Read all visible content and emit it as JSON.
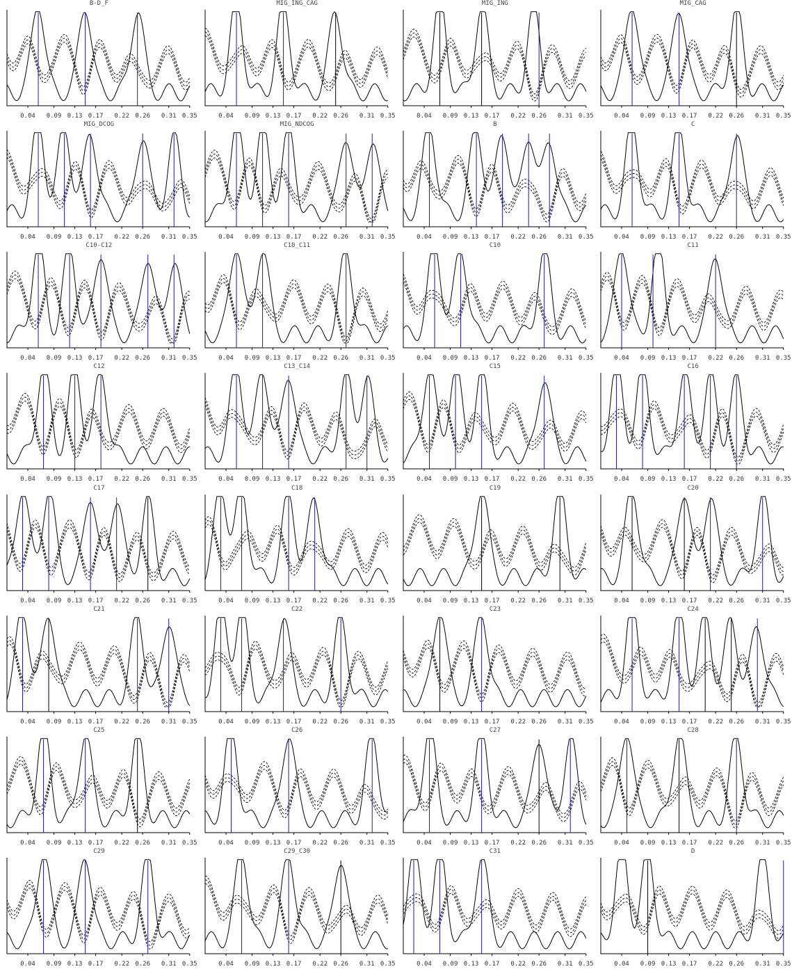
{
  "chart_data": {
    "type": "line",
    "layout_grid": [
      8,
      4
    ],
    "x_ticks": [
      "0.04",
      "0.09",
      "0.13",
      "0.17",
      "0.22",
      "0.26",
      "0.31",
      "0.35"
    ],
    "xlim": [
      0.0,
      0.35
    ],
    "ylim": [
      0,
      1
    ],
    "legend": "none",
    "grid": false,
    "colors": {
      "solid": "#000000",
      "dashed": "#000000",
      "vline_blue": "#1a1aa6",
      "vline_black": "#000000"
    },
    "panels": [
      {
        "title": "B-D_F",
        "peaks": [
          0.06,
          0.15,
          0.25
        ],
        "vlines": [
          {
            "x": 0.06,
            "c": "blue"
          },
          {
            "x": 0.15,
            "c": "blue"
          },
          {
            "x": 0.25,
            "c": "blue"
          }
        ]
      },
      {
        "title": "MIG_ING_CAG",
        "peaks": [
          0.06,
          0.15,
          0.25
        ],
        "vlines": [
          {
            "x": 0.06,
            "c": "blue"
          },
          {
            "x": 0.15,
            "c": "blue"
          },
          {
            "x": 0.25,
            "c": "black"
          }
        ]
      },
      {
        "title": "MIG_ING",
        "peaks": [
          0.07,
          0.15,
          0.25
        ],
        "vlines": [
          {
            "x": 0.07,
            "c": "black"
          },
          {
            "x": 0.15,
            "c": "black"
          },
          {
            "x": 0.26,
            "c": "blue"
          }
        ]
      },
      {
        "title": "MIG_CAG",
        "peaks": [
          0.06,
          0.15,
          0.26
        ],
        "vlines": [
          {
            "x": 0.06,
            "c": "blue"
          },
          {
            "x": 0.15,
            "c": "blue"
          },
          {
            "x": 0.26,
            "c": "black"
          }
        ]
      },
      {
        "title": "MIG_DCOG",
        "peaks": [
          0.06,
          0.11,
          0.16,
          0.26,
          0.32
        ],
        "vlines": [
          {
            "x": 0.06,
            "c": "blue"
          },
          {
            "x": 0.11,
            "c": "blue"
          },
          {
            "x": 0.16,
            "c": "blue"
          },
          {
            "x": 0.26,
            "c": "blue"
          },
          {
            "x": 0.32,
            "c": "blue"
          }
        ]
      },
      {
        "title": "MIG_NDCOG",
        "peaks": [
          0.06,
          0.11,
          0.16,
          0.27,
          0.32
        ],
        "vlines": [
          {
            "x": 0.06,
            "c": "blue"
          },
          {
            "x": 0.11,
            "c": "blue"
          },
          {
            "x": 0.16,
            "c": "blue"
          },
          {
            "x": 0.27,
            "c": "blue"
          },
          {
            "x": 0.32,
            "c": "blue"
          }
        ]
      },
      {
        "title": "B",
        "peaks": [
          0.05,
          0.14,
          0.19,
          0.24,
          0.28
        ],
        "vlines": [
          {
            "x": 0.05,
            "c": "blue"
          },
          {
            "x": 0.14,
            "c": "blue"
          },
          {
            "x": 0.19,
            "c": "blue"
          },
          {
            "x": 0.24,
            "c": "blue"
          },
          {
            "x": 0.28,
            "c": "blue"
          }
        ]
      },
      {
        "title": "C",
        "peaks": [
          0.06,
          0.15,
          0.26
        ],
        "vlines": [
          {
            "x": 0.06,
            "c": "blue"
          },
          {
            "x": 0.15,
            "c": "blue"
          },
          {
            "x": 0.26,
            "c": "blue"
          }
        ]
      },
      {
        "title": "C10-C12",
        "peaks": [
          0.06,
          0.12,
          0.18,
          0.27,
          0.32
        ],
        "vlines": [
          {
            "x": 0.06,
            "c": "blue"
          },
          {
            "x": 0.12,
            "c": "blue"
          },
          {
            "x": 0.18,
            "c": "blue"
          },
          {
            "x": 0.27,
            "c": "blue"
          },
          {
            "x": 0.32,
            "c": "blue"
          }
        ]
      },
      {
        "title": "C10_C11",
        "peaks": [
          0.06,
          0.11,
          0.27
        ],
        "vlines": [
          {
            "x": 0.06,
            "c": "blue"
          },
          {
            "x": 0.11,
            "c": "blue"
          },
          {
            "x": 0.27,
            "c": "blue"
          }
        ]
      },
      {
        "title": "C10",
        "peaks": [
          0.06,
          0.11,
          0.27
        ],
        "vlines": [
          {
            "x": 0.06,
            "c": "blue"
          },
          {
            "x": 0.11,
            "c": "blue"
          },
          {
            "x": 0.27,
            "c": "blue"
          }
        ]
      },
      {
        "title": "C11",
        "peaks": [
          0.04,
          0.11,
          0.22
        ],
        "vlines": [
          {
            "x": 0.04,
            "c": "blue"
          },
          {
            "x": 0.1,
            "c": "blue"
          },
          {
            "x": 0.22,
            "c": "blue"
          }
        ]
      },
      {
        "title": "C12",
        "peaks": [
          0.07,
          0.13,
          0.18
        ],
        "vlines": [
          {
            "x": 0.07,
            "c": "blue"
          },
          {
            "x": 0.13,
            "c": "blue"
          },
          {
            "x": 0.18,
            "c": "blue"
          }
        ]
      },
      {
        "title": "C13_C14",
        "peaks": [
          0.06,
          0.11,
          0.16,
          0.27,
          0.31
        ],
        "vlines": [
          {
            "x": 0.06,
            "c": "blue"
          },
          {
            "x": 0.11,
            "c": "blue"
          },
          {
            "x": 0.16,
            "c": "blue"
          },
          {
            "x": 0.27,
            "c": "blue"
          },
          {
            "x": 0.31,
            "c": "blue"
          }
        ]
      },
      {
        "title": "C15",
        "peaks": [
          0.05,
          0.1,
          0.15,
          0.27
        ],
        "vlines": [
          {
            "x": 0.05,
            "c": "blue"
          },
          {
            "x": 0.1,
            "c": "blue"
          },
          {
            "x": 0.15,
            "c": "blue"
          },
          {
            "x": 0.27,
            "c": "blue"
          }
        ]
      },
      {
        "title": "C16",
        "peaks": [
          0.03,
          0.08,
          0.16,
          0.21,
          0.26
        ],
        "vlines": [
          {
            "x": 0.03,
            "c": "blue"
          },
          {
            "x": 0.08,
            "c": "blue"
          },
          {
            "x": 0.16,
            "c": "blue"
          },
          {
            "x": 0.21,
            "c": "blue"
          },
          {
            "x": 0.26,
            "c": "blue"
          }
        ]
      },
      {
        "title": "C17",
        "peaks": [
          0.03,
          0.08,
          0.16,
          0.21,
          0.27
        ],
        "vlines": [
          {
            "x": 0.03,
            "c": "blue"
          },
          {
            "x": 0.08,
            "c": "blue"
          },
          {
            "x": 0.16,
            "c": "blue"
          },
          {
            "x": 0.21,
            "c": "blue"
          },
          {
            "x": 0.27,
            "c": "black"
          }
        ]
      },
      {
        "title": "C18",
        "peaks": [
          0.03,
          0.07,
          0.16,
          0.21
        ],
        "vlines": [
          {
            "x": 0.03,
            "c": "blue"
          },
          {
            "x": 0.07,
            "c": "blue"
          },
          {
            "x": 0.16,
            "c": "blue"
          },
          {
            "x": 0.21,
            "c": "blue"
          }
        ]
      },
      {
        "title": "C19",
        "peaks": [
          0.15,
          0.3
        ],
        "vlines": [
          {
            "x": 0.15,
            "c": "black"
          },
          {
            "x": 0.3,
            "c": "black"
          }
        ]
      },
      {
        "title": "C20",
        "peaks": [
          0.06,
          0.16,
          0.21,
          0.31
        ],
        "vlines": [
          {
            "x": 0.06,
            "c": "black"
          },
          {
            "x": 0.16,
            "c": "black"
          },
          {
            "x": 0.21,
            "c": "blue"
          },
          {
            "x": 0.31,
            "c": "blue"
          }
        ]
      },
      {
        "title": "C21",
        "peaks": [
          0.03,
          0.08,
          0.25,
          0.31
        ],
        "vlines": [
          {
            "x": 0.03,
            "c": "blue"
          },
          {
            "x": 0.08,
            "c": "black"
          },
          {
            "x": 0.25,
            "c": "blue"
          },
          {
            "x": 0.31,
            "c": "blue"
          }
        ]
      },
      {
        "title": "C22",
        "peaks": [
          0.03,
          0.07,
          0.15,
          0.26
        ],
        "vlines": [
          {
            "x": 0.03,
            "c": "blue"
          },
          {
            "x": 0.07,
            "c": "blue"
          },
          {
            "x": 0.15,
            "c": "blue"
          },
          {
            "x": 0.26,
            "c": "blue"
          }
        ]
      },
      {
        "title": "C23",
        "peaks": [
          0.07,
          0.15
        ],
        "vlines": [
          {
            "x": 0.07,
            "c": "black"
          },
          {
            "x": 0.15,
            "c": "blue"
          }
        ]
      },
      {
        "title": "C24",
        "peaks": [
          0.06,
          0.15,
          0.2,
          0.25,
          0.3
        ],
        "vlines": [
          {
            "x": 0.06,
            "c": "blue"
          },
          {
            "x": 0.15,
            "c": "blue"
          },
          {
            "x": 0.2,
            "c": "black"
          },
          {
            "x": 0.25,
            "c": "black"
          },
          {
            "x": 0.3,
            "c": "blue"
          }
        ]
      },
      {
        "title": "C25",
        "peaks": [
          0.07,
          0.15,
          0.25
        ],
        "vlines": [
          {
            "x": 0.07,
            "c": "blue"
          },
          {
            "x": 0.15,
            "c": "blue"
          },
          {
            "x": 0.25,
            "c": "black"
          }
        ]
      },
      {
        "title": "C26",
        "peaks": [
          0.05,
          0.16,
          0.32
        ],
        "vlines": [
          {
            "x": 0.05,
            "c": "blue"
          },
          {
            "x": 0.16,
            "c": "blue"
          },
          {
            "x": 0.32,
            "c": "blue"
          }
        ]
      },
      {
        "title": "C27",
        "peaks": [
          0.05,
          0.15,
          0.26,
          0.32
        ],
        "vlines": [
          {
            "x": 0.05,
            "c": "blue"
          },
          {
            "x": 0.15,
            "c": "blue"
          },
          {
            "x": 0.26,
            "c": "black"
          },
          {
            "x": 0.32,
            "c": "blue"
          }
        ]
      },
      {
        "title": "C28",
        "peaks": [
          0.05,
          0.15,
          0.26
        ],
        "vlines": [
          {
            "x": 0.05,
            "c": "blue"
          },
          {
            "x": 0.15,
            "c": "black"
          },
          {
            "x": 0.26,
            "c": "blue"
          }
        ]
      },
      {
        "title": "C29",
        "peaks": [
          0.07,
          0.15,
          0.27
        ],
        "vlines": [
          {
            "x": 0.07,
            "c": "blue"
          },
          {
            "x": 0.15,
            "c": "blue"
          },
          {
            "x": 0.27,
            "c": "blue"
          }
        ]
      },
      {
        "title": "C29_C30",
        "peaks": [
          0.07,
          0.16,
          0.26
        ],
        "vlines": [
          {
            "x": 0.07,
            "c": "blue"
          },
          {
            "x": 0.16,
            "c": "blue"
          },
          {
            "x": 0.26,
            "c": "black"
          }
        ]
      },
      {
        "title": "C31",
        "peaks": [
          0.02,
          0.07,
          0.15
        ],
        "vlines": [
          {
            "x": 0.02,
            "c": "blue"
          },
          {
            "x": 0.07,
            "c": "blue"
          },
          {
            "x": 0.15,
            "c": "blue"
          }
        ]
      },
      {
        "title": "D",
        "peaks": [
          0.04,
          0.09,
          0.31
        ],
        "vlines": [
          {
            "x": 0.09,
            "c": "black"
          },
          {
            "x": 0.35,
            "c": "blue"
          }
        ]
      }
    ]
  }
}
